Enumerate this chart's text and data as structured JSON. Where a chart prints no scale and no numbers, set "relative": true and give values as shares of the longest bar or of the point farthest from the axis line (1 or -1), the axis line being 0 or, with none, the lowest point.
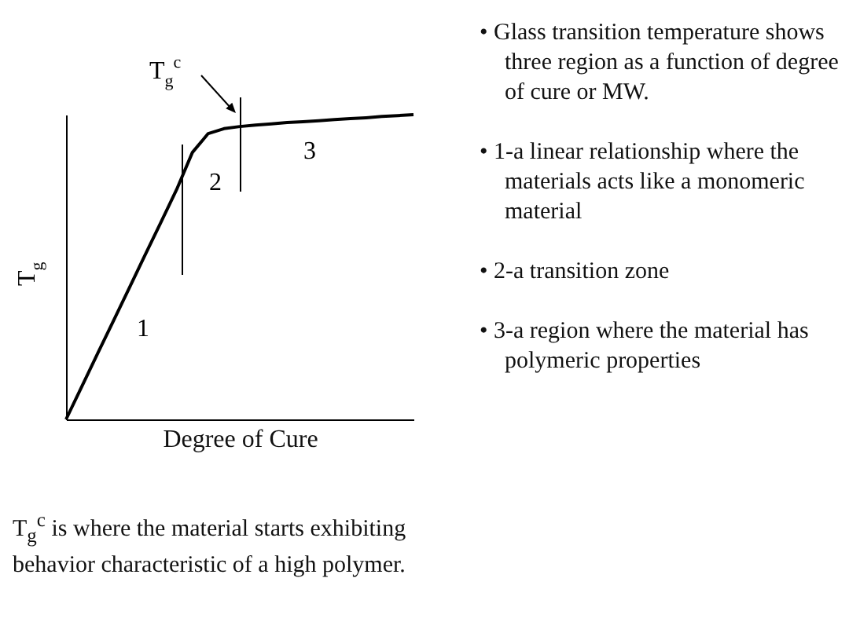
{
  "chart_data": {
    "type": "line",
    "relative": true,
    "xlabel": "Degree of Cure",
    "ylabel": "T$_{g}$",
    "tick_labels": false,
    "grid": false,
    "marker": "none",
    "line_style": "solid",
    "categories": [
      null,
      null,
      null,
      null,
      null,
      null,
      null,
      null,
      null,
      null,
      null,
      null,
      null,
      null,
      null,
      null,
      null,
      null,
      null,
      null,
      null,
      null,
      null
    ],
    "series": [
      {
        "color": "#000000",
        "values": [
          0,
          0.108,
          0.216,
          0.323,
          0.431,
          0.539,
          0.646,
          0.754,
          0.876,
          0.938,
          0.954,
          0.961,
          0.966,
          0.97,
          0.974,
          0.977,
          0.98,
          0.984,
          0.987,
          0.99,
          0.994,
          0.997,
          1
        ]
      }
    ],
    "annotations": [
      "1",
      "2",
      "3",
      "T$_{g}$$^{c}$",
      "• Glass transition temperature shows three region as a function of degree of cure or MW.",
      "• 1-a linear relationship where the materials acts like a monomeric material",
      "• 2-a transition zone",
      "• 3-a region where the material has polymeric properties",
      "T$_{g}$$^{c}$ is where the material starts exhibiting behavior characteristic of a high polymer."
    ]
  }
}
